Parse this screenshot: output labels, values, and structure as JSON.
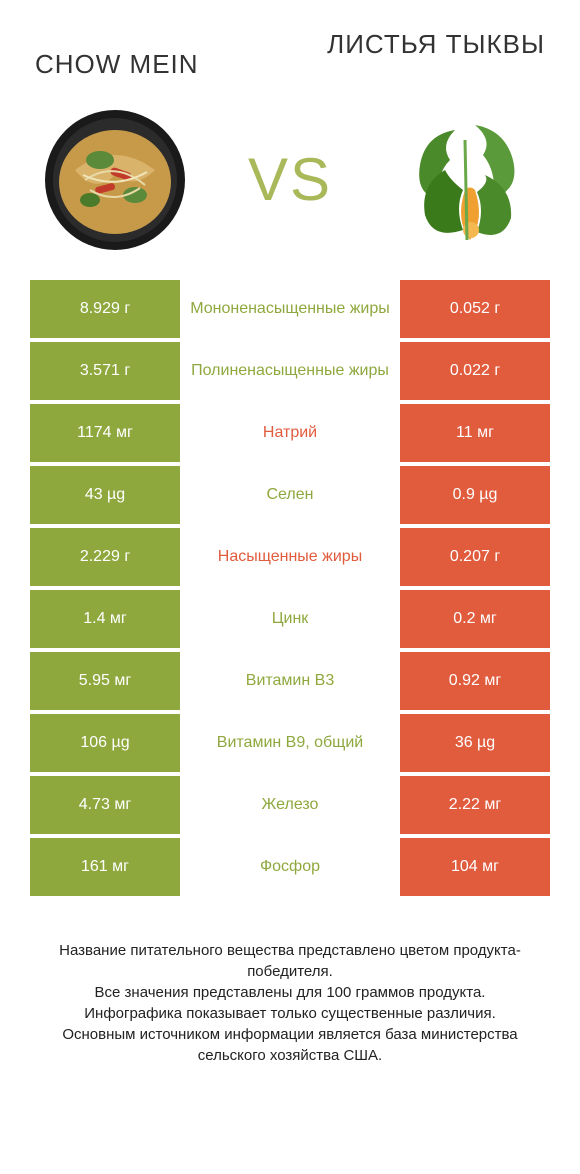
{
  "header": {
    "left_title": "CHOW MEIN",
    "right_title": "ЛИСТЬЯ ТЫКВЫ",
    "vs_label": "VS"
  },
  "colors": {
    "left_bg": "#8fa83e",
    "right_bg": "#e15b3d",
    "mid_text_green": "#8fa83e",
    "mid_text_orange": "#e15b3d",
    "vs_color": "#a9b95a"
  },
  "rows": [
    {
      "left": "8.929 г",
      "label": "Мононенасыщенные жиры",
      "right": "0.052 г",
      "winner": "left"
    },
    {
      "left": "3.571 г",
      "label": "Полиненасыщенные жиры",
      "right": "0.022 г",
      "winner": "left"
    },
    {
      "left": "1174 мг",
      "label": "Натрий",
      "right": "11 мг",
      "winner": "right"
    },
    {
      "left": "43 µg",
      "label": "Селен",
      "right": "0.9 µg",
      "winner": "left"
    },
    {
      "left": "2.229 г",
      "label": "Насыщенные жиры",
      "right": "0.207 г",
      "winner": "right"
    },
    {
      "left": "1.4 мг",
      "label": "Цинк",
      "right": "0.2 мг",
      "winner": "left"
    },
    {
      "left": "5.95 мг",
      "label": "Витамин B3",
      "right": "0.92 мг",
      "winner": "left"
    },
    {
      "left": "106 µg",
      "label": "Витамин B9, общий",
      "right": "36 µg",
      "winner": "left"
    },
    {
      "left": "4.73 мг",
      "label": "Железо",
      "right": "2.22 мг",
      "winner": "left"
    },
    {
      "left": "161 мг",
      "label": "Фосфор",
      "right": "104 мг",
      "winner": "left"
    }
  ],
  "footer": {
    "line1": "Название питательного вещества представлено цветом продукта-победителя.",
    "line2": "Все значения представлены для 100 граммов продукта.",
    "line3": "Инфографика показывает только существенные различия.",
    "line4": "Основным источником информации является база министерства сельского хозяйства США."
  }
}
